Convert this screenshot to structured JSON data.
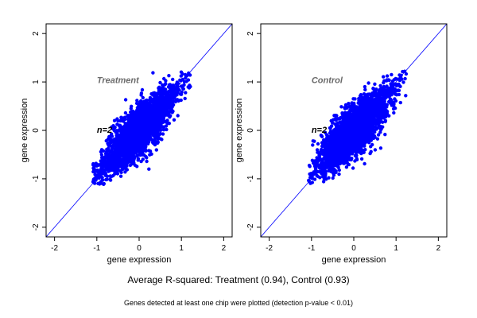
{
  "summary": "Average R-squared: Treatment (0.94), Control (0.93)",
  "footnote": "Genes detected at least one chip were plotted (detection p-value < 0.01)",
  "colors": {
    "points": "#0000ff",
    "line": "#0000ff",
    "frame": "#000000"
  },
  "chart_data": [
    {
      "type": "scatter",
      "panel_label": "Treatment",
      "annotation": "n=2",
      "xlabel": "gene expression",
      "ylabel": "gene expression",
      "xlim": [
        -2.2,
        2.2
      ],
      "ylim": [
        -2.2,
        2.2
      ],
      "xticks": [
        -2,
        -1,
        0,
        1,
        2
      ],
      "yticks": [
        -2,
        -1,
        0,
        1,
        2
      ],
      "reference_line": {
        "slope": 1,
        "intercept": 0
      },
      "cloud": {
        "x_range": [
          -1.1,
          1.25
        ],
        "y_range": [
          -1.12,
          1.22
        ],
        "approx_points": 2600,
        "spread": 0.14
      }
    },
    {
      "type": "scatter",
      "panel_label": "Control",
      "annotation": "n=2",
      "xlabel": "gene expression",
      "ylabel": "gene expression",
      "xlim": [
        -2.2,
        2.2
      ],
      "ylim": [
        -2.2,
        2.2
      ],
      "xticks": [
        -2,
        -1,
        0,
        1,
        2
      ],
      "yticks": [
        -2,
        -1,
        0,
        1,
        2
      ],
      "reference_line": {
        "slope": 1,
        "intercept": 0
      },
      "cloud": {
        "x_range": [
          -1.1,
          1.25
        ],
        "y_range": [
          -1.1,
          1.22
        ],
        "approx_points": 2600,
        "spread": 0.15
      }
    }
  ]
}
